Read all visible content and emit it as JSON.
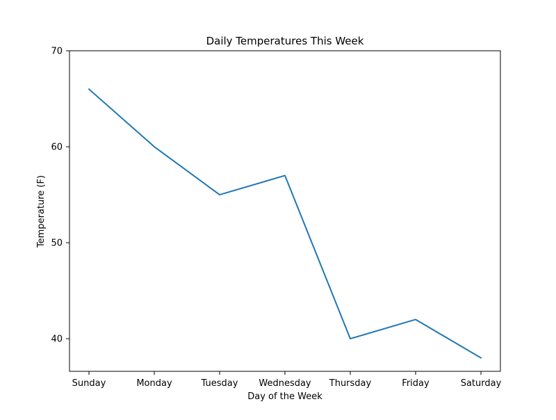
{
  "chart_data": {
    "type": "line",
    "title": "Daily Temperatures This Week",
    "xlabel": "Day of the Week",
    "ylabel": "Temperature (F)",
    "categories": [
      "Sunday",
      "Monday",
      "Tuesday",
      "Wednesday",
      "Thursday",
      "Friday",
      "Saturday"
    ],
    "series": [
      {
        "values": [
          66,
          60,
          55,
          57,
          40,
          42,
          38
        ],
        "color": "#1f77b4"
      }
    ],
    "ylim": [
      36.6,
      70
    ],
    "yticks": [
      40,
      50,
      60,
      70
    ],
    "grid": false,
    "legend": "none"
  }
}
